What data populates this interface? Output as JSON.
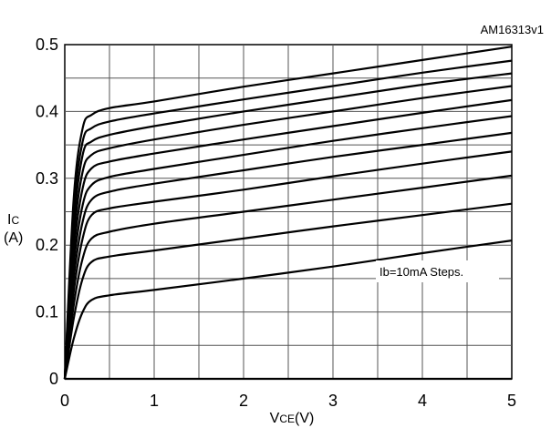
{
  "figure_title_fragment": "",
  "chart_data": {
    "type": "line",
    "id_label": "AM16313v1",
    "xlabel": "VCE(V)",
    "ylabel": "IC (A)",
    "xlim": [
      0,
      5
    ],
    "ylim": [
      0,
      0.5
    ],
    "x_ticks": [
      "0",
      "1",
      "2",
      "3",
      "4",
      "5"
    ],
    "y_ticks": [
      "0",
      "0.1",
      "0.2",
      "0.3",
      "0.4",
      "0.5"
    ],
    "grid": true,
    "annotation": "Ib=10mA Steps.",
    "x": [
      0,
      0.1,
      0.2,
      0.3,
      0.5,
      1,
      2,
      3,
      4,
      5
    ],
    "series": [
      {
        "values": [
          0,
          0.0,
          0.0,
          0.0,
          0.0,
          0.0,
          0.0,
          0.0,
          0.0,
          0.0
        ]
      },
      {
        "values": [
          0,
          0.06,
          0.1,
          0.118,
          0.125,
          0.133,
          0.15,
          0.168,
          0.188,
          0.207
        ]
      },
      {
        "values": [
          0,
          0.09,
          0.15,
          0.175,
          0.183,
          0.192,
          0.21,
          0.228,
          0.245,
          0.262
        ]
      },
      {
        "values": [
          0,
          0.11,
          0.18,
          0.21,
          0.22,
          0.232,
          0.25,
          0.268,
          0.286,
          0.304
        ]
      },
      {
        "values": [
          0,
          0.13,
          0.21,
          0.245,
          0.255,
          0.265,
          0.283,
          0.303,
          0.322,
          0.34
        ]
      },
      {
        "values": [
          0,
          0.15,
          0.235,
          0.268,
          0.28,
          0.292,
          0.312,
          0.332,
          0.35,
          0.368
        ]
      },
      {
        "values": [
          0,
          0.17,
          0.26,
          0.29,
          0.302,
          0.314,
          0.335,
          0.356,
          0.375,
          0.393
        ]
      },
      {
        "values": [
          0,
          0.19,
          0.285,
          0.315,
          0.325,
          0.337,
          0.358,
          0.378,
          0.398,
          0.417
        ]
      },
      {
        "values": [
          0,
          0.21,
          0.31,
          0.335,
          0.345,
          0.358,
          0.38,
          0.4,
          0.42,
          0.438
        ]
      },
      {
        "values": [
          0,
          0.23,
          0.335,
          0.355,
          0.365,
          0.378,
          0.4,
          0.42,
          0.44,
          0.457
        ]
      },
      {
        "values": [
          0,
          0.25,
          0.355,
          0.375,
          0.385,
          0.397,
          0.418,
          0.438,
          0.458,
          0.476
        ]
      },
      {
        "values": [
          0,
          0.27,
          0.375,
          0.395,
          0.405,
          0.415,
          0.437,
          0.457,
          0.477,
          0.497
        ]
      }
    ]
  }
}
